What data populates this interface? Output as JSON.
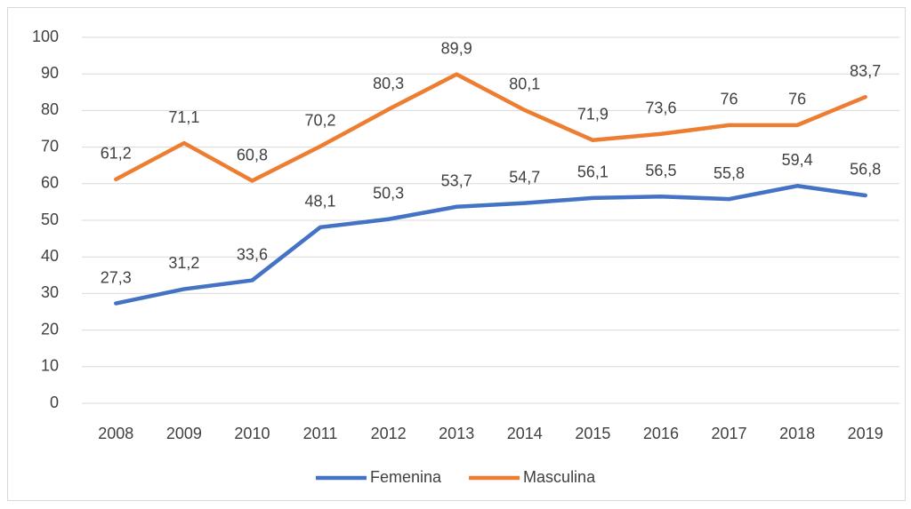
{
  "chart_data": {
    "type": "line",
    "categories": [
      "2008",
      "2009",
      "2010",
      "2011",
      "2012",
      "2013",
      "2014",
      "2015",
      "2016",
      "2017",
      "2018",
      "2019"
    ],
    "series": [
      {
        "name": "Femenina",
        "color": "#4472c4",
        "values": [
          27.3,
          31.2,
          33.6,
          48.1,
          50.3,
          53.7,
          54.7,
          56.1,
          56.5,
          55.8,
          59.4,
          56.8
        ],
        "value_labels": [
          "27,3",
          "31,2",
          "33,6",
          "48,1",
          "50,3",
          "53,7",
          "54,7",
          "56,1",
          "56,5",
          "55,8",
          "59,4",
          "56,8"
        ]
      },
      {
        "name": "Masculina",
        "color": "#ed7d31",
        "values": [
          61.2,
          71.1,
          60.8,
          70.2,
          80.3,
          89.9,
          80.1,
          71.9,
          73.6,
          76,
          76,
          83.7
        ],
        "value_labels": [
          "61,2",
          "71,1",
          "60,8",
          "70,2",
          "80,3",
          "89,9",
          "80,1",
          "71,9",
          "73,6",
          "76",
          "76",
          "83,7"
        ]
      }
    ],
    "ylim": [
      0,
      100
    ],
    "yticks": [
      0,
      10,
      20,
      30,
      40,
      50,
      60,
      70,
      80,
      90,
      100
    ],
    "grid": true,
    "legend": "bottom"
  }
}
